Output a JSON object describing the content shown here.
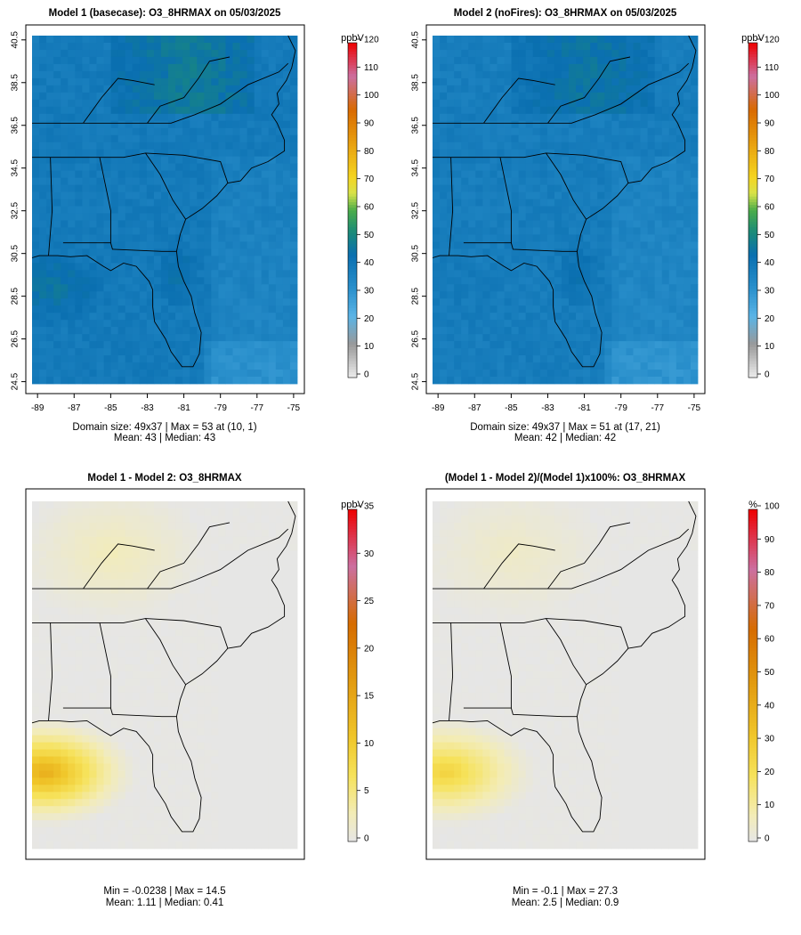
{
  "chart_data": [
    {
      "type": "heatmap",
      "title": "Model 1 (basecase): O3_8HRMAX on 05/03/2025",
      "variable": "O3_8HRMAX",
      "date": "05/03/2025",
      "units": "ppbV",
      "xlim": [
        -89.3,
        -74.8
      ],
      "ylim": [
        24.4,
        40.7
      ],
      "x_ticks": [
        "-89",
        "-87",
        "-85",
        "-83",
        "-81",
        "-79",
        "-77",
        "-75"
      ],
      "y_ticks": [
        "24.5",
        "26.5",
        "28.5",
        "30.5",
        "32.5",
        "34.5",
        "36.5",
        "38.5",
        "40.5"
      ],
      "colorbar_min": 0,
      "colorbar_max": 120,
      "colorbar_ticks": [
        "0",
        "10",
        "20",
        "30",
        "40",
        "50",
        "60",
        "70",
        "80",
        "90",
        "100",
        "110",
        "120"
      ],
      "colorbar_stops": [
        {
          "v": 0,
          "c": "#eeeeee"
        },
        {
          "v": 12,
          "c": "#999999"
        },
        {
          "v": 22,
          "c": "#5ab4e6"
        },
        {
          "v": 32,
          "c": "#2a90cc"
        },
        {
          "v": 44,
          "c": "#0a6fb0"
        },
        {
          "v": 52,
          "c": "#1a8a7a"
        },
        {
          "v": 60,
          "c": "#4aac4a"
        },
        {
          "v": 66,
          "c": "#d7e24a"
        },
        {
          "v": 72,
          "c": "#f5d420"
        },
        {
          "v": 84,
          "c": "#e8a010"
        },
        {
          "v": 96,
          "c": "#d96a00"
        },
        {
          "v": 108,
          "c": "#cc6fa0"
        },
        {
          "v": 120,
          "c": "#ee0000"
        }
      ],
      "field": {
        "base": 40,
        "center": 41,
        "ridge": 48,
        "southwest": 47,
        "ocean": 36
      },
      "stats_line1": "Domain size: 49x37 | Max = 53 at (10, 1)",
      "stats_line2": "Mean: 43 |  Median: 43"
    },
    {
      "type": "heatmap",
      "title": "Model 2 (noFires): O3_8HRMAX on 05/03/2025",
      "variable": "O3_8HRMAX",
      "date": "05/03/2025",
      "units": "ppbV",
      "xlim": [
        -89.3,
        -74.8
      ],
      "ylim": [
        24.4,
        40.7
      ],
      "x_ticks": [
        "-89",
        "-87",
        "-85",
        "-83",
        "-81",
        "-79",
        "-77",
        "-75"
      ],
      "y_ticks": [
        "24.5",
        "26.5",
        "28.5",
        "30.5",
        "32.5",
        "34.5",
        "36.5",
        "38.5",
        "40.5"
      ],
      "colorbar_min": 0,
      "colorbar_max": 120,
      "colorbar_ticks": [
        "0",
        "10",
        "20",
        "30",
        "40",
        "50",
        "60",
        "70",
        "80",
        "90",
        "100",
        "110",
        "120"
      ],
      "colorbar_stops": [
        {
          "v": 0,
          "c": "#eeeeee"
        },
        {
          "v": 12,
          "c": "#999999"
        },
        {
          "v": 22,
          "c": "#5ab4e6"
        },
        {
          "v": 32,
          "c": "#2a90cc"
        },
        {
          "v": 44,
          "c": "#0a6fb0"
        },
        {
          "v": 52,
          "c": "#1a8a7a"
        },
        {
          "v": 60,
          "c": "#4aac4a"
        },
        {
          "v": 66,
          "c": "#d7e24a"
        },
        {
          "v": 72,
          "c": "#f5d420"
        },
        {
          "v": 84,
          "c": "#e8a010"
        },
        {
          "v": 96,
          "c": "#d96a00"
        },
        {
          "v": 108,
          "c": "#cc6fa0"
        },
        {
          "v": 120,
          "c": "#ee0000"
        }
      ],
      "field": {
        "base": 39,
        "center": 40,
        "ridge": 46,
        "southwest": 40,
        "ocean": 35
      },
      "stats_line1": "Domain size: 49x37 | Max = 51 at (17, 21)",
      "stats_line2": "Mean: 42 |  Median: 42"
    },
    {
      "type": "heatmap",
      "title": "Model 1 - Model 2: O3_8HRMAX",
      "variable": "O3_8HRMAX",
      "units": "ppbV",
      "xlim": [
        -89.3,
        -74.8
      ],
      "ylim": [
        24.4,
        40.7
      ],
      "colorbar_min": 0,
      "colorbar_max": 35,
      "colorbar_ticks": [
        "0",
        "5",
        "10",
        "15",
        "20",
        "25",
        "30",
        "35"
      ],
      "colorbar_stops": [
        {
          "v": 0,
          "c": "#e6e6e6"
        },
        {
          "v": 3,
          "c": "#f3ecb6"
        },
        {
          "v": 7,
          "c": "#f6e25a"
        },
        {
          "v": 11,
          "c": "#f0c62a"
        },
        {
          "v": 17,
          "c": "#e29a10"
        },
        {
          "v": 23,
          "c": "#d66c00"
        },
        {
          "v": 29,
          "c": "#cc6fa0"
        },
        {
          "v": 35,
          "c": "#ee0000"
        }
      ],
      "field": {
        "peak": 14.5,
        "background": 0.3
      },
      "stats_line1": "Min = -0.0238 | Max = 14.5",
      "stats_line2": "Mean: 1.11 |  Median: 0.41"
    },
    {
      "type": "heatmap",
      "title": "(Model 1 - Model 2)/(Model 1)x100%: O3_8HRMAX",
      "variable": "O3_8HRMAX",
      "units": "%",
      "xlim": [
        -89.3,
        -74.8
      ],
      "ylim": [
        24.4,
        40.7
      ],
      "colorbar_min": 0,
      "colorbar_max": 100,
      "colorbar_ticks": [
        "0",
        "10",
        "20",
        "30",
        "40",
        "50",
        "60",
        "70",
        "80",
        "90",
        "100"
      ],
      "colorbar_stops": [
        {
          "v": 0,
          "c": "#e6e6e6"
        },
        {
          "v": 8,
          "c": "#f3ecb6"
        },
        {
          "v": 20,
          "c": "#f6e25a"
        },
        {
          "v": 32,
          "c": "#f0c62a"
        },
        {
          "v": 48,
          "c": "#e29a10"
        },
        {
          "v": 64,
          "c": "#d66c00"
        },
        {
          "v": 82,
          "c": "#cc6fa0"
        },
        {
          "v": 100,
          "c": "#ee0000"
        }
      ],
      "field": {
        "peak": 27.3,
        "background": 0.8
      },
      "stats_line1": "Min = -0.1 | Max = 27.3",
      "stats_line2": "Mean: 2.5 |  Median: 0.9"
    }
  ]
}
